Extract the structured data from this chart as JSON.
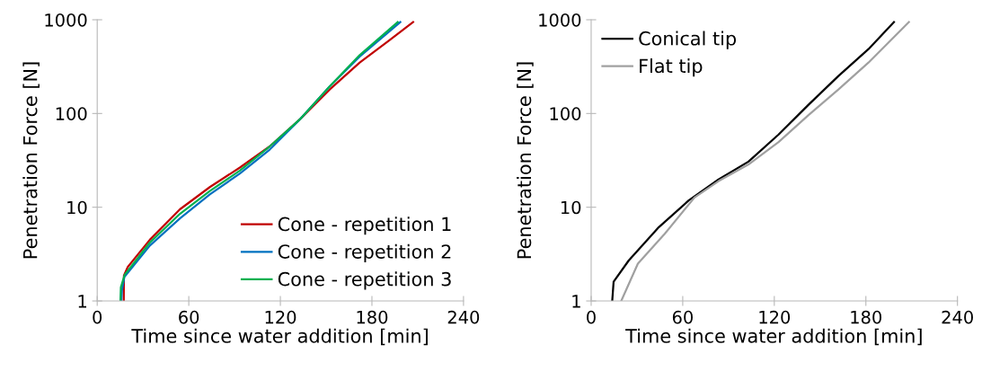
{
  "chart_data": [
    {
      "type": "line",
      "xlabel": "Time since water addition [min]",
      "ylabel": "Penetration Force [N]",
      "log": "y",
      "xlim": [
        0,
        240
      ],
      "xticks": [
        0,
        60,
        120,
        180,
        240
      ],
      "ylim": [
        1,
        1000
      ],
      "yticks": [
        1,
        10,
        100,
        1000
      ],
      "grid": false,
      "legend": "bottom right",
      "marker": "none",
      "line_style": "solid",
      "series": [
        {
          "name": "Cone - repetition 1",
          "color": "#c00000",
          "x": [
            17.4,
            17.5,
            20,
            34.5,
            54.2,
            73.8,
            93.5,
            113,
            132.6,
            152.3,
            172,
            191.6,
            207
          ],
          "values": [
            1,
            1.87,
            2.3,
            4.5,
            9.5,
            16.4,
            26.5,
            44.5,
            86,
            180,
            349,
            607,
            945
          ]
        },
        {
          "name": "Cone - repetition 2",
          "color": "#0070c0",
          "x": [
            15.8,
            16.2,
            17.8,
            34.5,
            54.2,
            73.8,
            93.5,
            113,
            132.6,
            152.3,
            172,
            198.6
          ],
          "values": [
            1,
            1.3,
            1.8,
            3.9,
            7.6,
            13.7,
            22.9,
            41.2,
            86,
            194,
            405,
            945
          ]
        },
        {
          "name": "Cone - repetition 3",
          "color": "#00b050",
          "x": [
            15.2,
            15.5,
            18,
            34.5,
            54.2,
            73.8,
            93.5,
            113,
            132.6,
            152.3,
            172,
            196.9
          ],
          "values": [
            1,
            1.4,
            1.9,
            4.2,
            8.5,
            14.9,
            24.6,
            44.5,
            86,
            194,
            420,
            945
          ]
        }
      ]
    },
    {
      "type": "line",
      "xlabel": "Time since water addition [min]",
      "ylabel": "Penetration Force [N]",
      "log": "y",
      "xlim": [
        0,
        240
      ],
      "xticks": [
        0,
        60,
        120,
        180,
        240
      ],
      "ylim": [
        1,
        1000
      ],
      "yticks": [
        1,
        10,
        100,
        1000
      ],
      "grid": false,
      "legend": "top left",
      "marker": "none",
      "line_style": "solid",
      "series": [
        {
          "name": "Conical tip",
          "color": "#000000",
          "x": [
            13.8,
            14.7,
            24.6,
            44.2,
            63.9,
            83.5,
            103.1,
            122.8,
            142.4,
            162,
            181.7,
            198.4
          ],
          "values": [
            1,
            1.6,
            2.7,
            6.1,
            11.8,
            19.8,
            30.7,
            59.7,
            124,
            251,
            486,
            945
          ]
        },
        {
          "name": "Flat tip",
          "color": "#a0a0a0",
          "x": [
            19.7,
            30.6,
            48.2,
            67.7,
            83.5,
            103.1,
            122.8,
            142.4,
            162,
            181.7,
            208.2
          ],
          "values": [
            1,
            2.5,
            5.2,
            12.7,
            19,
            28.6,
            49.6,
            96,
            180,
            349,
            945
          ]
        }
      ]
    }
  ]
}
